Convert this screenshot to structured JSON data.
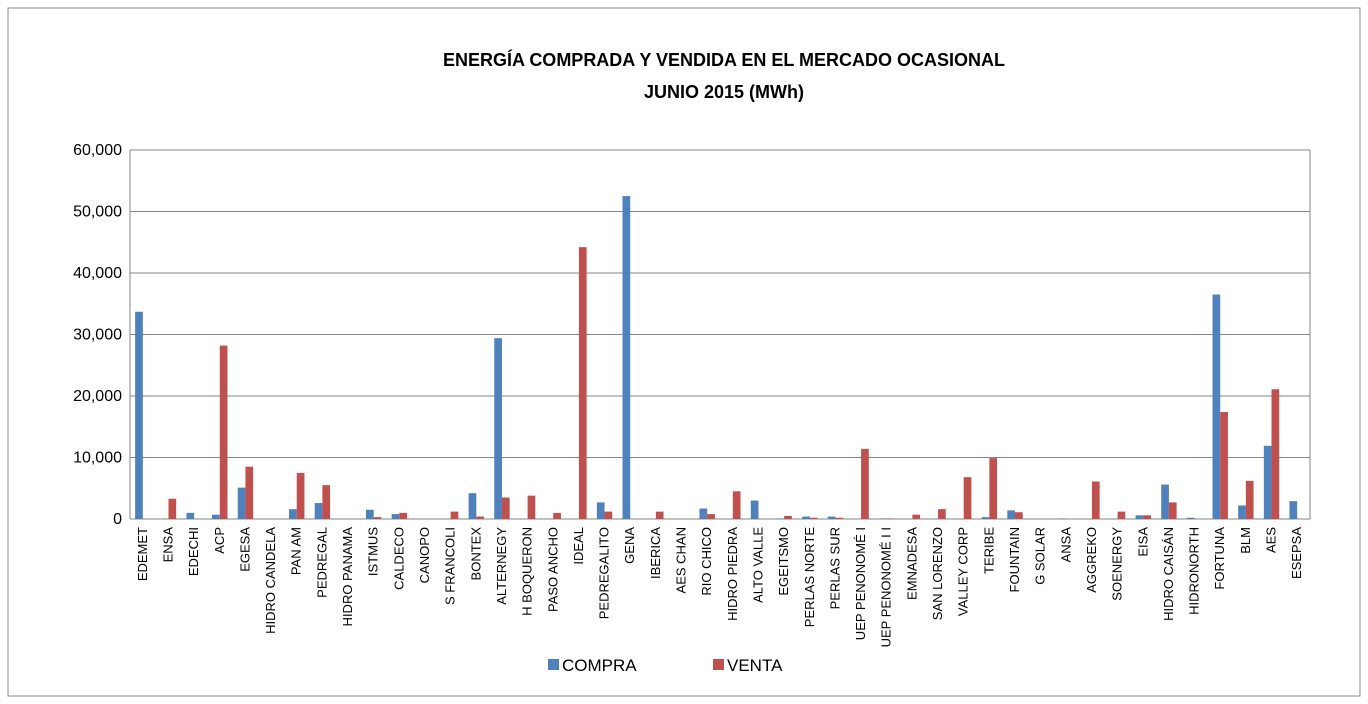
{
  "chart_data": {
    "type": "bar",
    "title": "ENERGÍA  COMPRADA  Y  VENDIDA  EN  EL  MERCADO  OCASIONAL",
    "subtitle": "JUNIO 2015  (MWh)",
    "categories": [
      "EDEMET",
      "ENSA",
      "EDECHI",
      "ACP",
      "EGESA",
      "HIDRO CANDELA",
      "PAN AM",
      "PEDREGAL",
      "HIDRO PANAMA",
      "ISTMUS",
      "CALDECO",
      "CANOPO",
      "S FRANCOLI",
      "BONTEX",
      "ALTERNEGY",
      "H BOQUERON",
      "PASO ANCHO",
      "IDEAL",
      "PEDREGALITO",
      "GENA",
      "IBERICA",
      "AES CHAN",
      "RIO CHICO",
      "HIDRO PIEDRA",
      "ALTO VALLE",
      "EGEITSMO",
      "PERLAS NORTE",
      "PERLAS SUR",
      "UEP PENONOMÉ   I",
      "UEP PENONOMÉ  I I",
      "EMNADESA",
      "SAN LORENZO",
      "VALLEY CORP",
      "TERIBE",
      "FOUNTAIN",
      "G SOLAR",
      "ANSA",
      "AGGREKO",
      "SOENERGY",
      "EISA",
      "HIDRO CAISÁN",
      "HIDRONORTH",
      "FORTUNA",
      "BLM",
      "AES",
      "ESEPSA"
    ],
    "series": [
      {
        "name": "COMPRA",
        "color": "#4f81bd",
        "values": [
          33700,
          0,
          1000,
          700,
          5100,
          0,
          1600,
          2600,
          0,
          1500,
          800,
          0,
          0,
          4200,
          29400,
          0,
          0,
          0,
          2700,
          52500,
          0,
          0,
          1700,
          0,
          3000,
          100,
          400,
          400,
          0,
          100,
          0,
          0,
          0,
          300,
          1400,
          0,
          100,
          0,
          0,
          600,
          5600,
          200,
          36500,
          2200,
          11900,
          2900
        ]
      },
      {
        "name": "VENTA",
        "color": "#c0504d",
        "values": [
          0,
          3300,
          0,
          28200,
          8500,
          0,
          7500,
          5500,
          0,
          300,
          1000,
          0,
          1200,
          400,
          3500,
          3800,
          1000,
          44200,
          1200,
          0,
          1200,
          0,
          800,
          4500,
          0,
          500,
          200,
          200,
          11400,
          100,
          700,
          1600,
          6800,
          9900,
          1100,
          0,
          0,
          6100,
          1200,
          600,
          2700,
          0,
          17400,
          6200,
          21100,
          0
        ]
      }
    ],
    "ylim": [
      0,
      60000
    ],
    "yticks": [
      0,
      {
        "value": 10000,
        "label": "10,000"
      },
      {
        "value": 20000,
        "label": "20,000"
      },
      {
        "value": 30000,
        "label": "30,000"
      },
      {
        "value": 40000,
        "label": "40,000"
      },
      {
        "value": 50000,
        "label": "50,000"
      },
      {
        "value": 60000,
        "label": "60,000"
      }
    ],
    "grid": true,
    "legend": "bottom"
  }
}
